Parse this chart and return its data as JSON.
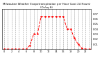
{
  "title": "Milwaukee Weather Evapotranspiration per Hour (Last 24 Hours) (Oz/sq ft)",
  "hours": [
    0,
    1,
    2,
    3,
    4,
    5,
    6,
    7,
    8,
    9,
    10,
    11,
    12,
    13,
    14,
    15,
    16,
    17,
    18,
    19,
    20,
    21,
    22,
    23
  ],
  "values": [
    0,
    0,
    0,
    0,
    0,
    0,
    0,
    0.008,
    0.03,
    0.03,
    0.065,
    0.065,
    0.065,
    0.065,
    0.065,
    0.065,
    0.065,
    0.04,
    0.04,
    0.022,
    0.01,
    0.002,
    0,
    0
  ],
  "line_color": "#ff0000",
  "line_style": "--",
  "line_width": 0.7,
  "marker": "o",
  "marker_size": 0.8,
  "grid_color": "#999999",
  "grid_style": "--",
  "background_color": "#ffffff",
  "ylim": [
    0,
    0.08
  ],
  "yticks": [
    0.01,
    0.02,
    0.03,
    0.04,
    0.05,
    0.06,
    0.07
  ],
  "title_fontsize": 2.8,
  "tick_fontsize": 2.5,
  "grid_linewidth": 0.4
}
